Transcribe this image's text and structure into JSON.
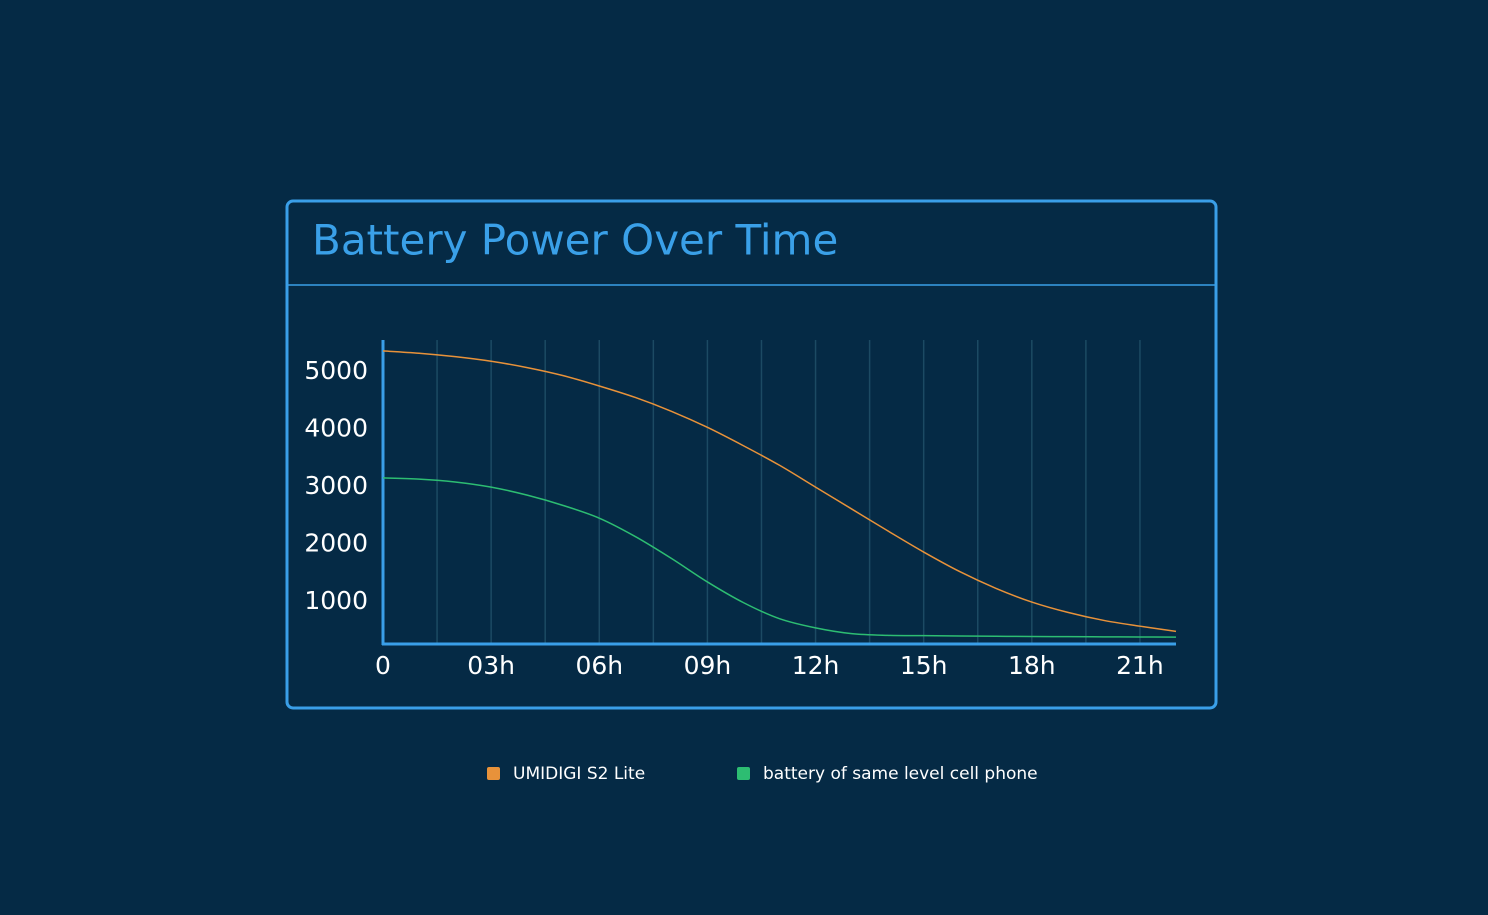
{
  "chart_data": {
    "type": "line",
    "title": "Battery Power Over Time",
    "x": [
      0,
      1,
      2,
      3,
      4,
      5,
      6,
      7,
      8,
      9,
      10,
      11,
      12,
      13,
      14,
      15,
      16,
      17,
      18,
      19,
      20,
      21,
      22
    ],
    "series": [
      {
        "name": "UMIDIGI S2 Lite",
        "color": "#e8923a",
        "values": [
          5370,
          5330,
          5270,
          5190,
          5080,
          4940,
          4760,
          4560,
          4320,
          4040,
          3720,
          3380,
          3000,
          2620,
          2240,
          1870,
          1530,
          1240,
          1000,
          820,
          680,
          580,
          490
        ]
      },
      {
        "name": "battery of same level cell phone",
        "color": "#2dbd72",
        "values": [
          3160,
          3140,
          3090,
          3000,
          2860,
          2680,
          2460,
          2140,
          1760,
          1350,
          990,
          710,
          550,
          450,
          420,
          415,
          410,
          405,
          400,
          398,
          395,
          392,
          390
        ]
      }
    ],
    "xlim": [
      0,
      22
    ],
    "xticks": [
      0,
      {
        "value": 3,
        "label": "03h"
      },
      {
        "value": 6,
        "label": "06h"
      },
      {
        "value": 9,
        "label": "09h"
      },
      {
        "value": 12,
        "label": "12h"
      },
      {
        "value": 15,
        "label": "15h"
      },
      {
        "value": 18,
        "label": "18h"
      },
      {
        "value": 21,
        "label": "21h"
      }
    ],
    "xminorticks": [
      1.5,
      3,
      4.5,
      6,
      7.5,
      9,
      10.5,
      12,
      13.5,
      15,
      16.5,
      18,
      19.5,
      21
    ],
    "ylim": [
      270,
      5560
    ],
    "yticks": [
      1000,
      2000,
      3000,
      4000,
      5000
    ],
    "grid": true,
    "legend": "bottom"
  }
}
